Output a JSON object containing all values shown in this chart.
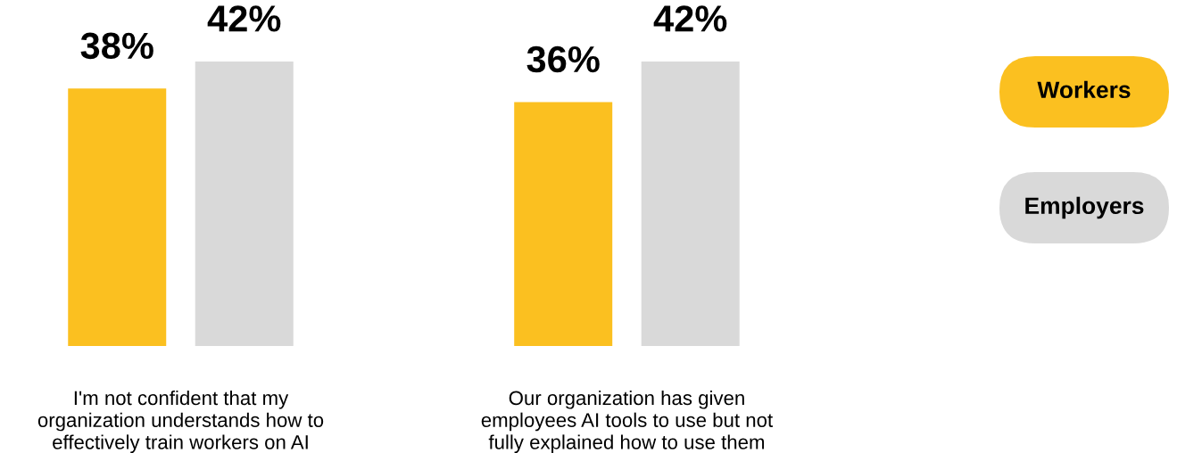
{
  "chart_data": {
    "type": "bar",
    "categories": [
      "I'm not confident that my\norganization understands how to\neffectively train workers on AI",
      "Our organization has given\nemployees AI tools to use but not\nfully explained how to use them"
    ],
    "series": [
      {
        "name": "Workers",
        "color": "#fbc020",
        "values": [
          38,
          36
        ],
        "value_labels": [
          "38%",
          "36%"
        ]
      },
      {
        "name": "Employers",
        "color": "#d9d9d9",
        "values": [
          42,
          42
        ],
        "value_labels": [
          "42%",
          "42%"
        ]
      }
    ],
    "legend": "right"
  }
}
